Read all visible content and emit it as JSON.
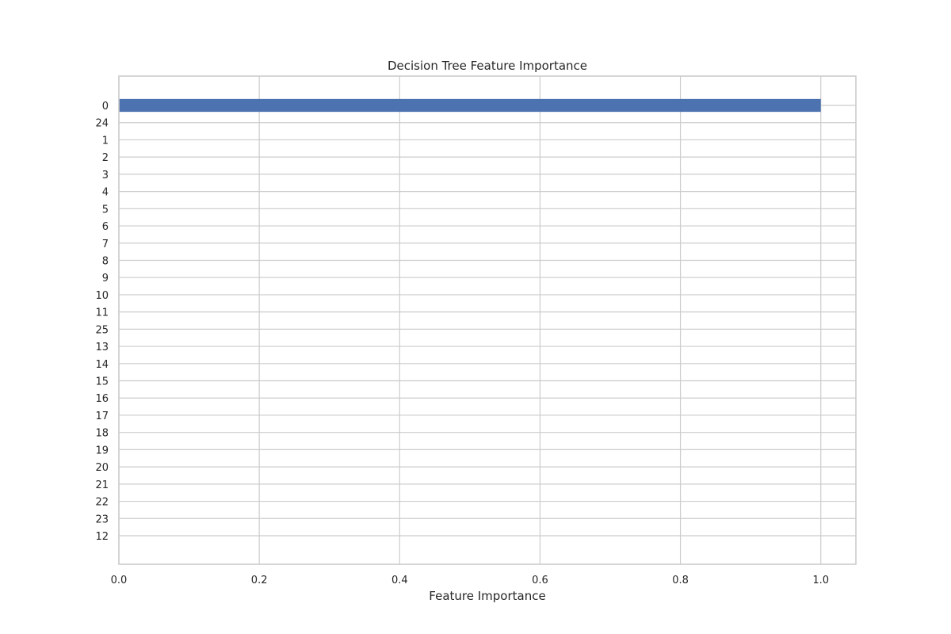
{
  "chart_data": {
    "type": "bar",
    "orientation": "horizontal",
    "title": "Decision Tree Feature Importance",
    "xlabel": "Feature Importance",
    "ylabel": "",
    "categories": [
      "0",
      "24",
      "1",
      "2",
      "3",
      "4",
      "5",
      "6",
      "7",
      "8",
      "9",
      "10",
      "11",
      "25",
      "13",
      "14",
      "15",
      "16",
      "17",
      "18",
      "19",
      "20",
      "21",
      "22",
      "23",
      "12"
    ],
    "values": [
      1.0,
      0,
      0,
      0,
      0,
      0,
      0,
      0,
      0,
      0,
      0,
      0,
      0,
      0,
      0,
      0,
      0,
      0,
      0,
      0,
      0,
      0,
      0,
      0,
      0,
      0
    ],
    "xlim": [
      0.0,
      1.05
    ],
    "xticks": [
      0.0,
      0.2,
      0.4,
      0.6,
      0.8,
      1.0
    ],
    "xtick_labels": [
      "0.0",
      "0.2",
      "0.4",
      "0.6",
      "0.8",
      "1.0"
    ],
    "grid": true,
    "bar_color": "#4c72b0",
    "grid_color": "#cccccc",
    "text_color": "#262626"
  }
}
